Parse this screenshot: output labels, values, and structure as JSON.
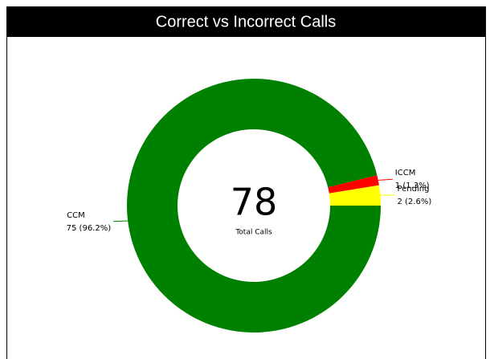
{
  "chart_data": {
    "type": "donut",
    "title": "Correct vs Incorrect Calls",
    "categories": [
      "CCM",
      "ICCM",
      "Pending"
    ],
    "values": [
      75,
      1,
      2
    ],
    "value_labels": [
      "75 (96.2%)",
      "1 (1.3%)",
      "2 (2.6%)"
    ],
    "colors": [
      "#008000",
      "#ff0000",
      "#ffff00"
    ],
    "center_value": 78,
    "center_label": "Total Calls"
  }
}
